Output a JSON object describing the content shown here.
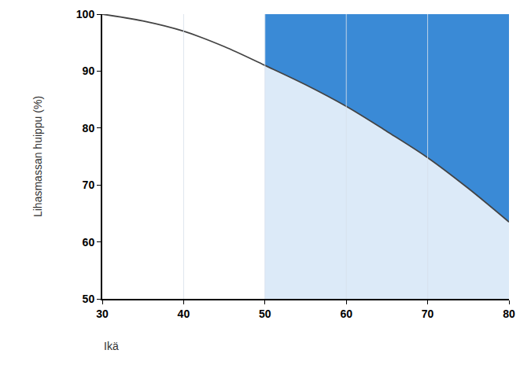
{
  "chart_data": {
    "type": "line",
    "y_label": "Lihasmassan huippu (%)",
    "x_label": "Ikä",
    "x": [
      30,
      35,
      40,
      45,
      50,
      55,
      60,
      65,
      70,
      75,
      80
    ],
    "values": [
      100,
      98.8,
      97,
      94.3,
      91,
      87.6,
      83.8,
      79.4,
      74.8,
      69.4,
      63.5
    ],
    "color": "#444444",
    "xlim": [
      30,
      80
    ],
    "ylim": [
      50,
      100
    ],
    "xticks": [
      30,
      40,
      50,
      60,
      70,
      80
    ],
    "yticks": [
      50,
      60,
      70,
      80,
      90,
      100
    ],
    "shaded_x": [
      50,
      80
    ],
    "grid": true
  }
}
